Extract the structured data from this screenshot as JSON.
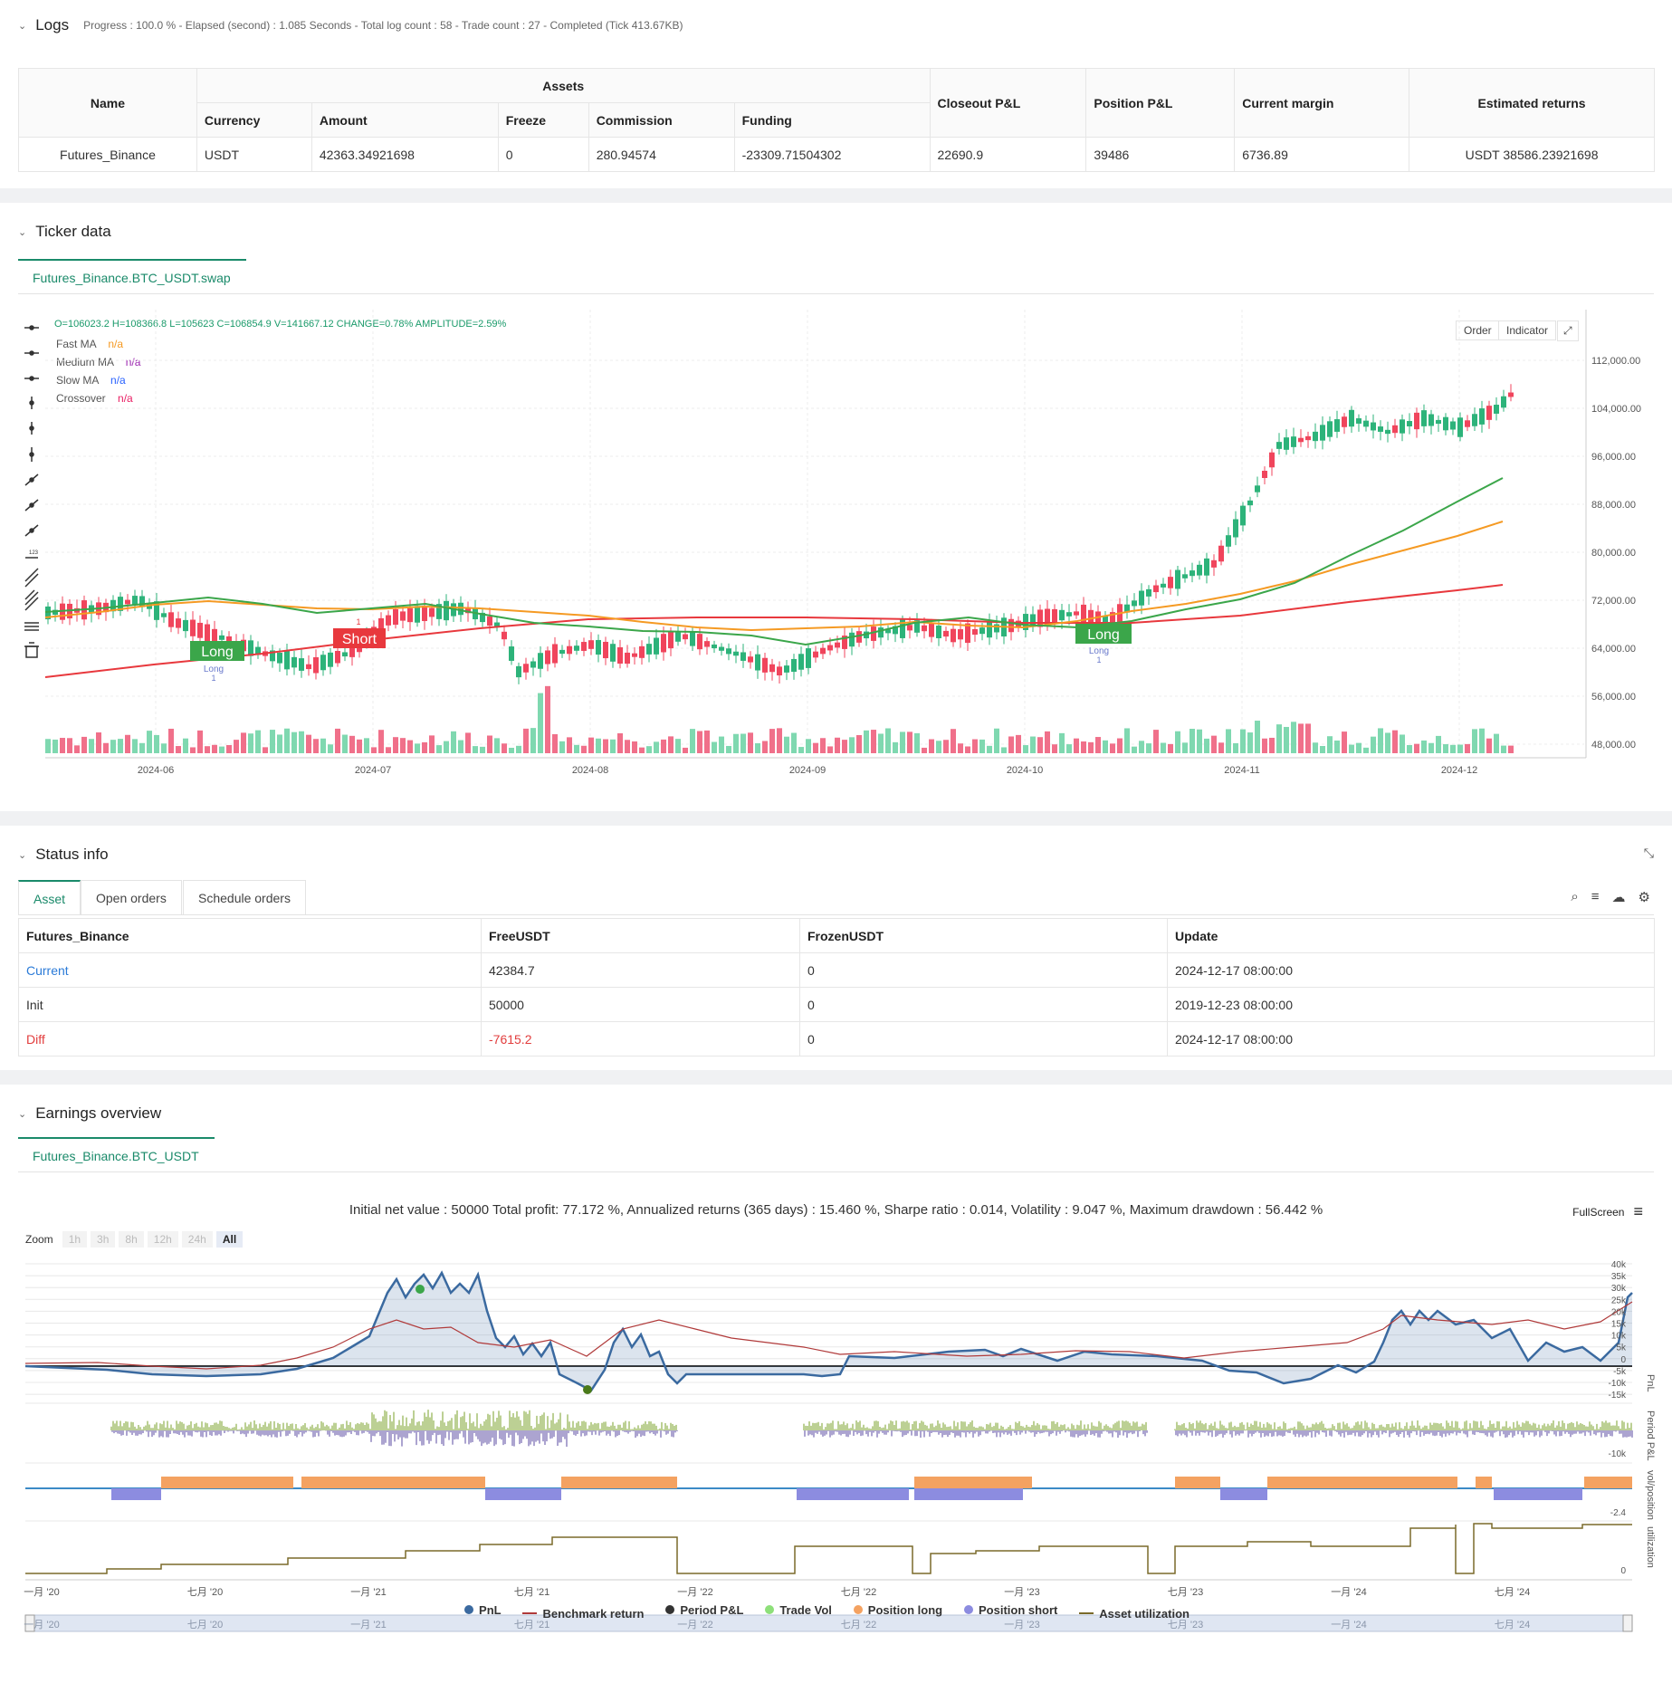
{
  "logs": {
    "title": "Logs",
    "summary": "Progress : 100.0 % - Elapsed (second) : 1.085  Seconds - Total log count : 58 - Trade count : 27 - Completed (Tick 413.67KB)",
    "headers": {
      "name": "Name",
      "assets": "Assets",
      "currency": "Currency",
      "amount": "Amount",
      "freeze": "Freeze",
      "commission": "Commission",
      "funding": "Funding",
      "closeout": "Closeout P&L",
      "position": "Position P&L",
      "margin": "Current margin",
      "returns": "Estimated returns"
    },
    "row": {
      "name": "Futures_Binance",
      "currency": "USDT",
      "amount": "42363.34921698",
      "freeze": "0",
      "commission": "280.94574",
      "funding": "-23309.71504302",
      "closeout": "22690.9",
      "position": "39486",
      "margin": "6736.89",
      "returns": "USDT 38586.23921698"
    }
  },
  "ticker": {
    "title": "Ticker data",
    "tab": "Futures_Binance.BTC_USDT.swap",
    "ohlc": "O=106023.2 H=108366.8 L=105623 C=106854.9 V=141667.12 CHANGE=0.78% AMPLITUDE=2.59%",
    "indicators": [
      {
        "name": "Fast MA",
        "value": "n/a",
        "color": "#f59a23"
      },
      {
        "name": "Medium MA",
        "value": "n/a",
        "color": "#9c27b0"
      },
      {
        "name": "Slow MA",
        "value": "n/a",
        "color": "#2962ff"
      },
      {
        "name": "Crossover",
        "value": "n/a",
        "color": "#e91e63"
      }
    ],
    "buttons": {
      "order": "Order",
      "indicator": "Indicator"
    },
    "price_ticks": [
      "112,000.00",
      "104,000.00",
      "96,000.00",
      "88,000.00",
      "80,000.00",
      "72,000.00",
      "64,000.00",
      "56,000.00",
      "48,000.00"
    ],
    "date_ticks": [
      "2024-06",
      "2024-07",
      "2024-08",
      "2024-09",
      "2024-10",
      "2024-11",
      "2024-12"
    ],
    "labels": {
      "long1": "Long",
      "short": "Short",
      "long2": "Long",
      "small_long": "Long",
      "small_one": "1"
    }
  },
  "status": {
    "title": "Status info",
    "tabs": [
      "Asset",
      "Open orders",
      "Schedule orders"
    ],
    "headers": [
      "Futures_Binance",
      "FreeUSDT",
      "FrozenUSDT",
      "Update"
    ],
    "rows": [
      {
        "label": "Current",
        "free": "42384.7",
        "frozen": "0",
        "update": "2024-12-17 08:00:00"
      },
      {
        "label": "Init",
        "free": "50000",
        "frozen": "0",
        "update": "2019-12-23 08:00:00"
      },
      {
        "label": "Diff",
        "free": "-7615.2",
        "frozen": "0",
        "update": "2024-12-17 08:00:00"
      }
    ]
  },
  "earnings": {
    "title": "Earnings overview",
    "tab": "Futures_Binance.BTC_USDT",
    "summary": "Initial net value : 50000 Total profit: 77.172 %, Annualized returns (365 days) : 15.460 %, Sharpe ratio : 0.014, Volatility : 9.047 %, Maximum drawdown : 56.442 %",
    "fullscreen": "FullScreen",
    "zoom_label": "Zoom",
    "zoom_buttons": [
      "1h",
      "3h",
      "8h",
      "12h",
      "24h",
      "All"
    ],
    "pnl_ticks": [
      "40k",
      "35k",
      "30k",
      "25k",
      "20k",
      "15k",
      "10k",
      "5k",
      "0",
      "-5k",
      "-10k",
      "-15k"
    ],
    "period_tick": "-10k",
    "pos_tick": "-2.4",
    "util_tick": "0",
    "axis_titles": [
      "PnL",
      "Period P&L",
      "vol/position",
      "utilization"
    ],
    "x_ticks": [
      "一月 '20",
      "七月 '20",
      "一月 '21",
      "七月 '21",
      "一月 '22",
      "七月 '22",
      "一月 '23",
      "七月 '23",
      "一月 '24",
      "七月 '24"
    ],
    "legend": [
      {
        "name": "PnL",
        "color": "#3b6aa0",
        "kind": "dot"
      },
      {
        "name": "Benchmark return",
        "color": "#b03a3a",
        "kind": "line"
      },
      {
        "name": "Period P&L",
        "color": "#333333",
        "kind": "dot"
      },
      {
        "name": "Trade Vol",
        "color": "#8ee07a",
        "kind": "dot"
      },
      {
        "name": "Position long",
        "color": "#f4a261",
        "kind": "dot"
      },
      {
        "name": "Position short",
        "color": "#8c8ce0",
        "kind": "dot"
      },
      {
        "name": "Asset utilization",
        "color": "#7a6a2a",
        "kind": "line"
      }
    ]
  }
}
